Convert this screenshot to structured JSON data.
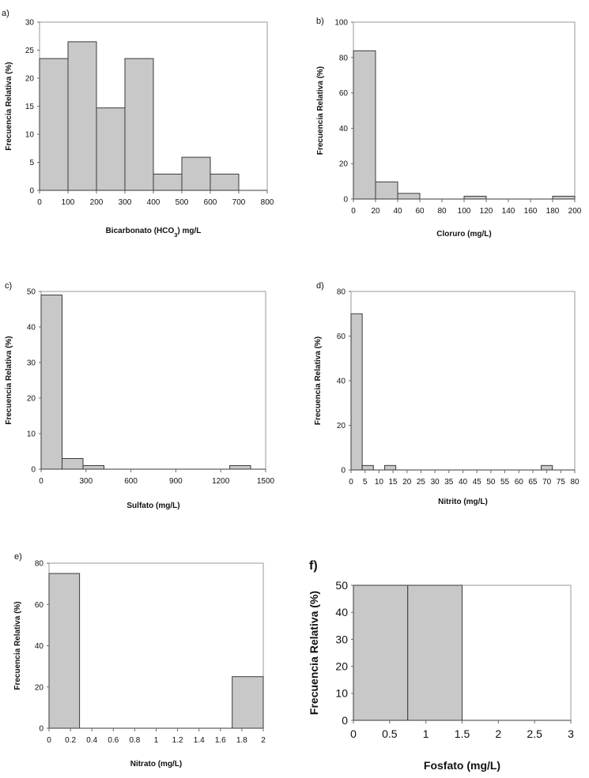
{
  "chart_data": [
    {
      "type": "bar",
      "panel": "a)",
      "title": "",
      "xlabel": "Bicarbonato (HCO3) mg/L",
      "xlabel_parts": [
        "Bicarbonato (HCO",
        "3",
        ") mg/L"
      ],
      "ylabel": "Frecuencia Relativa (%)",
      "xlim": [
        0,
        800
      ],
      "ylim": [
        0,
        30
      ],
      "xticks": [
        "0",
        "100",
        "200",
        "300",
        "400",
        "500",
        "600",
        "700",
        "800"
      ],
      "yticks": [
        "0",
        "5",
        "10",
        "15",
        "20",
        "25",
        "30"
      ],
      "bin_edges": [
        0,
        100,
        200,
        300,
        400,
        500,
        600,
        700
      ],
      "values": [
        23.5,
        26.5,
        14.7,
        23.5,
        2.9,
        5.9,
        2.9
      ],
      "grid": false
    },
    {
      "type": "bar",
      "panel": "b)",
      "title": "",
      "xlabel": "Cloruro (mg/L)",
      "ylabel": "Frecuencia Relativa (%)",
      "xlim": [
        0,
        200
      ],
      "ylim": [
        0,
        100
      ],
      "xticks": [
        "0",
        "20",
        "40",
        "60",
        "80",
        "100",
        "120",
        "140",
        "160",
        "180",
        "200"
      ],
      "yticks": [
        "0",
        "20",
        "40",
        "60",
        "80",
        "100"
      ],
      "bin_edges": [
        0,
        20,
        40,
        60,
        80,
        100,
        120,
        140,
        160,
        180,
        200
      ],
      "values": [
        83.8,
        9.7,
        3.2,
        0,
        0,
        1.6,
        0,
        0,
        0,
        1.6
      ],
      "grid": false
    },
    {
      "type": "bar",
      "panel": "c)",
      "title": "",
      "xlabel": "Sulfato (mg/L)",
      "ylabel": "Frecuencia Relativa (%)",
      "xlim": [
        0,
        1500
      ],
      "ylim": [
        0,
        50
      ],
      "xticks": [
        "0",
        "300",
        "600",
        "900",
        "1200",
        "1500"
      ],
      "yticks": [
        "0",
        "10",
        "20",
        "30",
        "40",
        "50"
      ],
      "bin_edges": [
        0,
        140,
        280,
        420,
        560,
        700,
        840,
        980,
        1120,
        1260,
        1400
      ],
      "values": [
        49,
        3,
        1,
        0,
        0,
        0,
        0,
        0,
        0,
        1
      ],
      "grid": false
    },
    {
      "type": "bar",
      "panel": "d)",
      "title": "",
      "xlabel": "Nitrito (mg/L)",
      "ylabel": "Frecuencia Relativa (%)",
      "xlim": [
        0,
        80
      ],
      "ylim": [
        0,
        80
      ],
      "xticks": [
        "0",
        "5",
        "10",
        "15",
        "20",
        "25",
        "30",
        "35",
        "40",
        "45",
        "50",
        "55",
        "60",
        "65",
        "70",
        "75",
        "80"
      ],
      "yticks": [
        "0",
        "20",
        "40",
        "60",
        "80"
      ],
      "bin_edges": [
        0,
        4,
        8,
        12,
        16,
        20,
        24,
        28,
        32,
        36,
        40,
        44,
        48,
        52,
        56,
        60,
        64,
        68,
        72,
        76
      ],
      "values": [
        70,
        2,
        0,
        2,
        0,
        0,
        0,
        0,
        0,
        0,
        0,
        0,
        0,
        0,
        0,
        0,
        0,
        2,
        0
      ],
      "grid": false
    },
    {
      "type": "bar",
      "panel": "e)",
      "title": "",
      "xlabel": "Nitrato (mg/L)",
      "ylabel": "Frecuencia Relativa (%)",
      "xlim": [
        0,
        2
      ],
      "ylim": [
        0,
        80
      ],
      "xticks": [
        "0",
        "0.2",
        "0.4",
        "0.6",
        "0.8",
        "1",
        "1.2",
        "1.4",
        "1.6",
        "1.8",
        "2"
      ],
      "yticks": [
        "0",
        "20",
        "40",
        "60",
        "80"
      ],
      "bin_edges": [
        0,
        0.285,
        0.57,
        0.855,
        1.14,
        1.425,
        1.71,
        2.0
      ],
      "values": [
        75,
        0,
        0,
        0,
        0,
        0,
        25
      ],
      "grid": false
    },
    {
      "type": "bar",
      "panel": "f)",
      "title": "",
      "xlabel": "Fosfato (mg/L)",
      "ylabel": "Frecuencia Relativa (%)",
      "xlim": [
        0,
        3
      ],
      "ylim": [
        0,
        50
      ],
      "xticks": [
        "0",
        "0.5",
        "1",
        "1.5",
        "2",
        "2.5",
        "3"
      ],
      "yticks": [
        "0",
        "10",
        "20",
        "30",
        "40",
        "50"
      ],
      "bin_edges": [
        0,
        0.75,
        1.5,
        2.25,
        3.0
      ],
      "values": [
        50,
        50,
        0,
        0
      ],
      "grid": false
    }
  ]
}
